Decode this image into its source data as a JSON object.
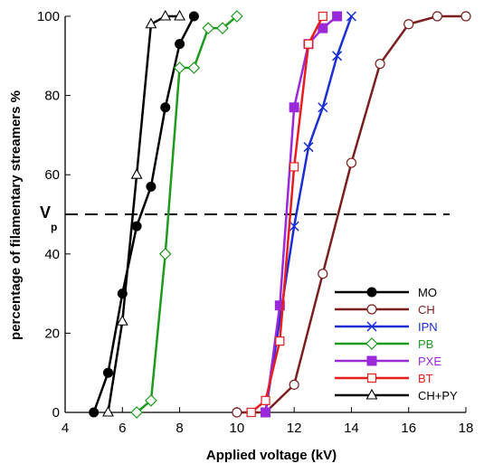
{
  "chart_data": {
    "type": "line",
    "xlabel": "Applied voltage (kV)",
    "ylabel": "percentage of filamentary streamers %",
    "xlim": [
      4,
      18
    ],
    "ylim": [
      0,
      100
    ],
    "xticks": [
      4,
      6,
      8,
      10,
      12,
      14,
      16,
      18
    ],
    "yticks": [
      0,
      20,
      40,
      60,
      80,
      100
    ],
    "reference_line": {
      "y": 50,
      "label": "V",
      "subscript": "p",
      "style": "dashed"
    },
    "legend_position": "bottom-right",
    "series": [
      {
        "name": "MO",
        "color": "#000000",
        "marker": "filled-circle",
        "x": [
          5,
          5.5,
          6,
          6.5,
          7,
          7.5,
          8,
          8.5
        ],
        "y": [
          0,
          10,
          30,
          47,
          57,
          77,
          93,
          100
        ]
      },
      {
        "name": "CH",
        "color": "#7a1e1e",
        "marker": "open-circle",
        "x": [
          10,
          11,
          12,
          13,
          14,
          15,
          16,
          17,
          18
        ],
        "y": [
          0,
          0,
          7,
          35,
          63,
          88,
          98,
          100,
          100
        ]
      },
      {
        "name": "IPN",
        "color": "#1a2ed4",
        "marker": "x",
        "x": [
          11,
          12,
          12.5,
          13,
          13.5,
          14
        ],
        "y": [
          0,
          47,
          67,
          77,
          90,
          100
        ]
      },
      {
        "name": "PB",
        "color": "#1e9a1e",
        "marker": "open-diamond",
        "x": [
          6.5,
          7,
          7.5,
          8,
          8.5,
          9,
          9.5,
          10
        ],
        "y": [
          0,
          3,
          40,
          87,
          87,
          97,
          97,
          100
        ]
      },
      {
        "name": "PXE",
        "color": "#9a2ad9",
        "marker": "filled-square",
        "x": [
          11,
          11.5,
          12,
          12.5,
          13,
          13.5
        ],
        "y": [
          0,
          27,
          77,
          93,
          97,
          100
        ]
      },
      {
        "name": "BT",
        "color": "#e81e1e",
        "marker": "open-square",
        "x": [
          10.5,
          11,
          11.5,
          12,
          12.5,
          13
        ],
        "y": [
          0,
          3,
          18,
          62,
          93,
          100
        ]
      },
      {
        "name": "CH+PY",
        "color": "#000000",
        "marker": "open-triangle",
        "x": [
          5.5,
          6,
          6.5,
          7,
          7.5,
          8
        ],
        "y": [
          0,
          23,
          60,
          98,
          100,
          100
        ]
      }
    ]
  }
}
